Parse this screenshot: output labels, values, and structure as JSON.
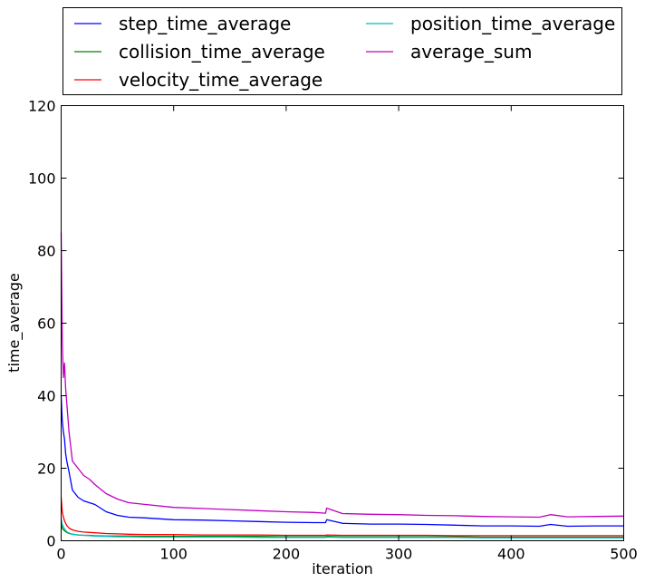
{
  "chart_data": {
    "type": "line",
    "xlabel": "iteration",
    "ylabel": "time_average",
    "xlim": [
      0,
      500
    ],
    "ylim": [
      0,
      120
    ],
    "x_ticks": [
      0,
      100,
      200,
      300,
      400,
      500
    ],
    "y_ticks": [
      0,
      20,
      40,
      60,
      80,
      100,
      120
    ],
    "grid": false,
    "legend_position": "above plot, two columns",
    "x": [
      0,
      1,
      2,
      3,
      4,
      5,
      7,
      10,
      15,
      20,
      25,
      30,
      40,
      50,
      60,
      75,
      100,
      125,
      150,
      175,
      200,
      225,
      235,
      236,
      250,
      275,
      300,
      325,
      350,
      375,
      400,
      425,
      435,
      450,
      475,
      500
    ],
    "series": [
      {
        "name": "step_time_average",
        "color": "#0000ff",
        "values": [
          40,
          33,
          30,
          28,
          24,
          22,
          19,
          14,
          12,
          11,
          10.5,
          10,
          8,
          7,
          6.5,
          6.3,
          5.8,
          5.7,
          5.5,
          5.3,
          5.1,
          5.0,
          5.0,
          5.8,
          4.8,
          4.6,
          4.6,
          4.5,
          4.3,
          4.1,
          4.1,
          4.0,
          4.5,
          4.0,
          4.1,
          4.1
        ]
      },
      {
        "name": "collision_time_average",
        "color": "#008000",
        "values": [
          4.5,
          3.5,
          3.0,
          2.8,
          2.5,
          2.3,
          2.0,
          1.8,
          1.6,
          1.5,
          1.5,
          1.4,
          1.3,
          1.3,
          1.3,
          1.2,
          1.2,
          1.2,
          1.2,
          1.2,
          1.1,
          1.1,
          1.1,
          1.2,
          1.1,
          1.1,
          1.1,
          1.1,
          1.1,
          1.0,
          1.0,
          1.0,
          1.0,
          1.0,
          1.0,
          1.0
        ]
      },
      {
        "name": "velocity_time_average",
        "color": "#ff0000",
        "values": [
          12,
          8,
          6.5,
          5.5,
          4.8,
          4.2,
          3.5,
          3.0,
          2.6,
          2.4,
          2.3,
          2.2,
          2.0,
          1.9,
          1.8,
          1.7,
          1.7,
          1.6,
          1.6,
          1.6,
          1.5,
          1.5,
          1.5,
          1.6,
          1.5,
          1.5,
          1.5,
          1.5,
          1.4,
          1.4,
          1.4,
          1.4,
          1.4,
          1.4,
          1.4,
          1.4
        ]
      },
      {
        "name": "position_time_average",
        "color": "#00bfbf",
        "values": [
          6,
          4.5,
          3.8,
          3.3,
          2.8,
          2.5,
          2.1,
          1.8,
          1.6,
          1.5,
          1.4,
          1.3,
          1.2,
          1.1,
          1.1,
          1.0,
          1.0,
          1.0,
          1.0,
          0.9,
          0.9,
          0.9,
          0.9,
          1.0,
          0.9,
          0.9,
          0.9,
          0.9,
          0.9,
          0.8,
          0.8,
          0.8,
          0.8,
          0.8,
          0.8,
          0.8
        ]
      },
      {
        "name": "average_sum",
        "color": "#bf00bf",
        "values": [
          85,
          55,
          45,
          49,
          42,
          38,
          30,
          22,
          20,
          18,
          17,
          15.5,
          13,
          11.5,
          10.5,
          10,
          9.2,
          8.9,
          8.6,
          8.3,
          8.0,
          7.8,
          7.6,
          9.0,
          7.5,
          7.3,
          7.2,
          7.0,
          6.9,
          6.7,
          6.6,
          6.5,
          7.2,
          6.6,
          6.7,
          6.8
        ]
      }
    ]
  }
}
